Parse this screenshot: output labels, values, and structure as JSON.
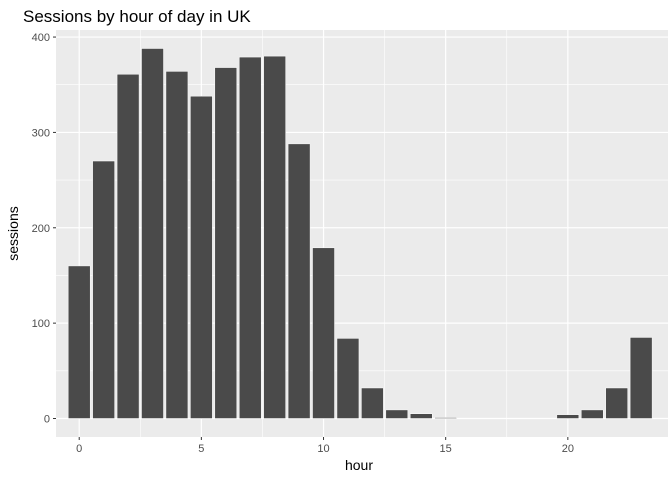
{
  "chart_data": {
    "type": "bar",
    "title": "Sessions by hour of day in UK",
    "xlabel": "hour",
    "ylabel": "sessions",
    "x": [
      0,
      1,
      2,
      3,
      4,
      5,
      6,
      7,
      8,
      9,
      10,
      11,
      12,
      13,
      14,
      15,
      16,
      17,
      18,
      19,
      20,
      21,
      22,
      23
    ],
    "values": [
      160,
      270,
      361,
      388,
      364,
      338,
      368,
      379,
      380,
      288,
      179,
      84,
      32,
      9,
      5,
      1,
      0,
      0,
      0,
      0,
      4,
      9,
      32,
      85
    ],
    "xlim": [
      -0.95,
      24.1
    ],
    "ylim": [
      -19.4,
      407.4
    ],
    "x_ticks": [
      0,
      5,
      10,
      15,
      20
    ],
    "y_ticks": [
      0,
      100,
      200,
      300,
      400
    ],
    "grid": true,
    "colors": {
      "panel": "#ebebeb",
      "grid_major": "#ffffff",
      "bar_fill": "#4a4a4a",
      "bar_stroke": "#ffffff"
    }
  }
}
